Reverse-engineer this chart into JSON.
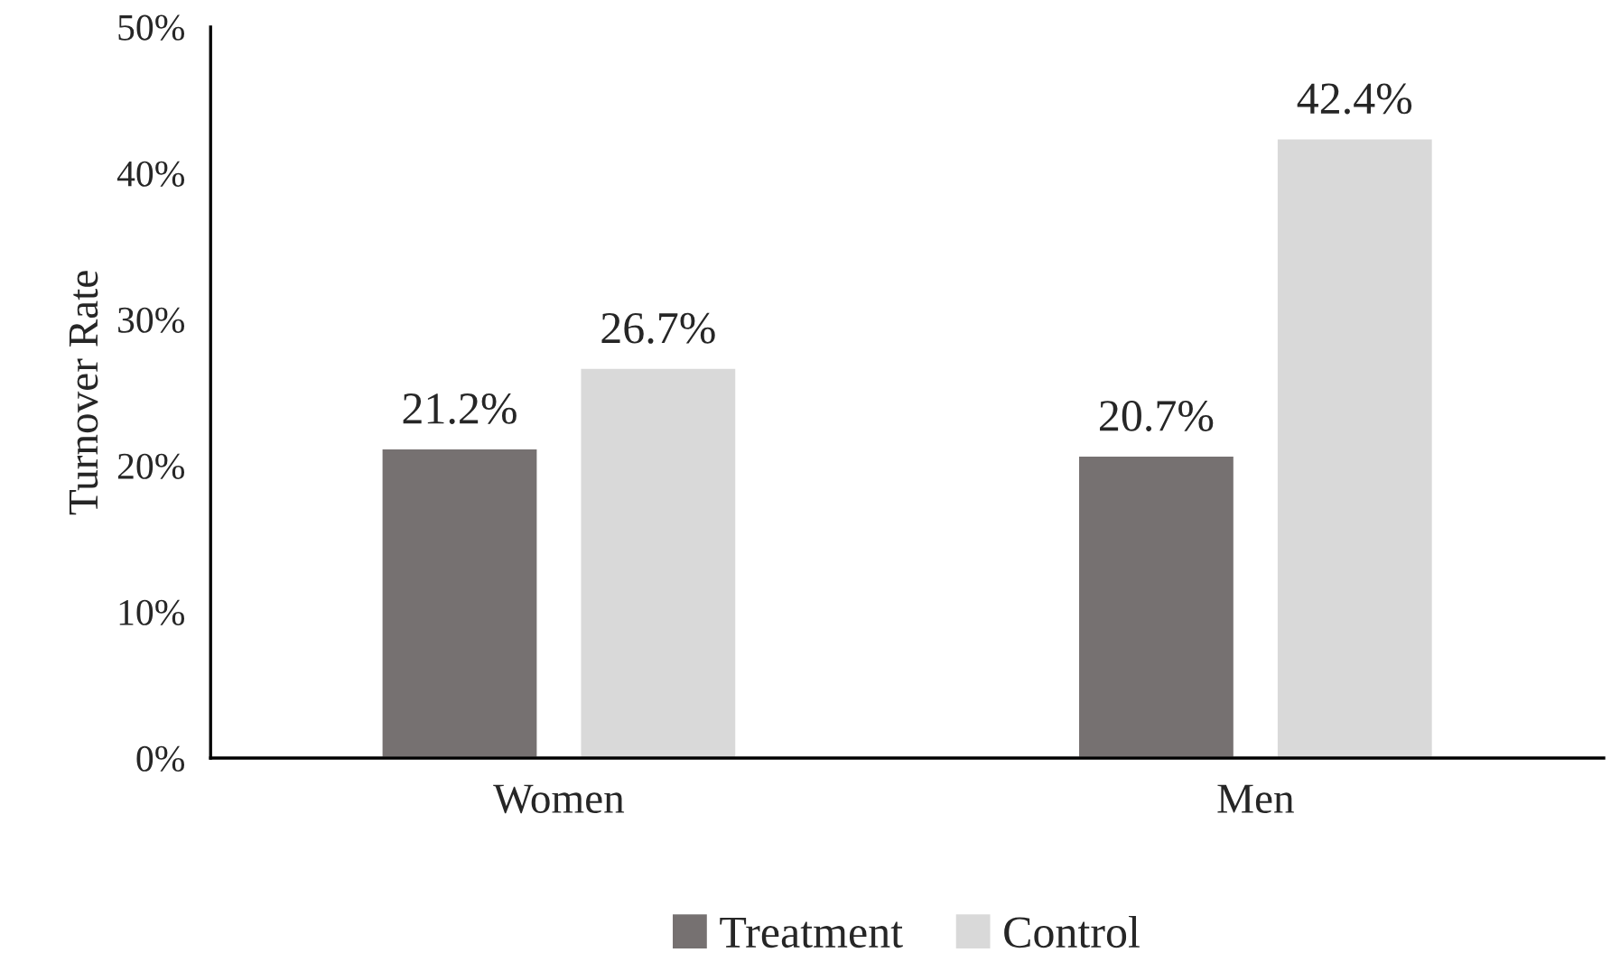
{
  "chart_data": {
    "type": "bar",
    "ylabel": "Turnover Rate",
    "categories": [
      "Women",
      "Men"
    ],
    "series": [
      {
        "name": "Treatment",
        "color": "#767171",
        "values": [
          21.2,
          20.7
        ],
        "value_labels": [
          "21.2%",
          "20.7%"
        ]
      },
      {
        "name": "Control",
        "color": "#d9d9d9",
        "values": [
          26.7,
          42.4
        ],
        "value_labels": [
          "26.7%",
          "42.4%"
        ]
      }
    ],
    "ylim": [
      0,
      50
    ],
    "yticks": [
      {
        "value": 0,
        "label": "0%"
      },
      {
        "value": 10,
        "label": "10%"
      },
      {
        "value": 20,
        "label": "20%"
      },
      {
        "value": 30,
        "label": "30%"
      },
      {
        "value": 40,
        "label": "40%"
      },
      {
        "value": 50,
        "label": "50%"
      }
    ],
    "grid": false,
    "legend": "bottom"
  }
}
